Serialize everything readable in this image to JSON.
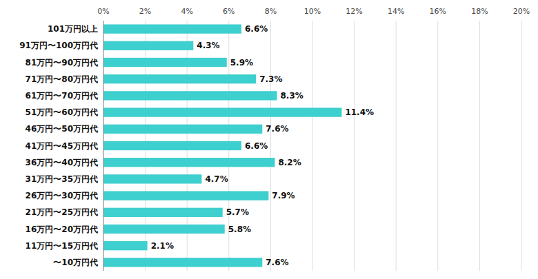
{
  "chart_data": {
    "type": "bar",
    "orientation": "horizontal",
    "categories": [
      "101万円以上",
      "91万円〜100万円代",
      "81万円〜90万円代",
      "71万円〜80万円代",
      "61万円〜70万円代",
      "51万円〜60万円代",
      "46万円〜50万円代",
      "41万円〜45万円代",
      "36万円〜40万円代",
      "31万円〜35万円代",
      "26万円〜30万円代",
      "21万円〜25万円代",
      "16万円〜20万円代",
      "11万円〜15万円代",
      "〜10万円代"
    ],
    "values": [
      6.6,
      4.3,
      5.9,
      7.3,
      8.3,
      11.4,
      7.6,
      6.6,
      8.2,
      4.7,
      7.9,
      5.7,
      5.8,
      2.1,
      7.6
    ],
    "value_labels": [
      "6.6%",
      "4.3%",
      "5.9%",
      "7.3%",
      "8.3%",
      "11.4%",
      "7.6%",
      "6.6%",
      "8.2%",
      "4.7%",
      "7.9%",
      "5.7%",
      "5.8%",
      "2.1%",
      "7.6%"
    ],
    "data_labels": true,
    "color": "#3ECFCF",
    "xlim": [
      0,
      20
    ],
    "xticks": [
      {
        "value": 0,
        "label": "0%"
      },
      {
        "value": 2,
        "label": "2%"
      },
      {
        "value": 4,
        "label": "4%"
      },
      {
        "value": 6,
        "label": "6%"
      },
      {
        "value": 8,
        "label": "8%"
      },
      {
        "value": 10,
        "label": "10%"
      },
      {
        "value": 12,
        "label": "12%"
      },
      {
        "value": 14,
        "label": "14%"
      },
      {
        "value": 16,
        "label": "16%"
      },
      {
        "value": 18,
        "label": "18%"
      },
      {
        "value": 20,
        "label": "20%"
      }
    ],
    "grid": true
  }
}
